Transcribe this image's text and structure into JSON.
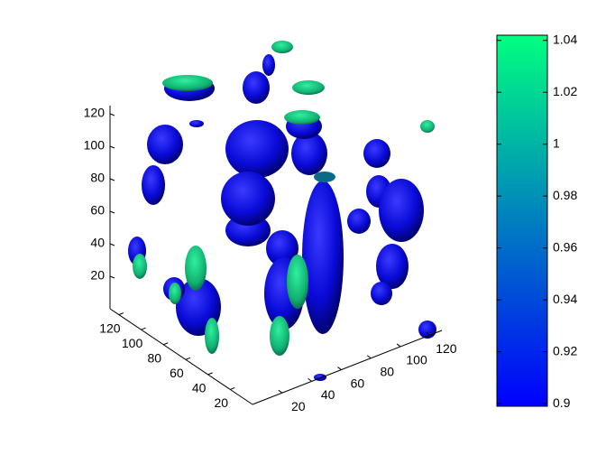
{
  "chart_data": {
    "type": "isosurface3d",
    "xlim": [
      0,
      128
    ],
    "xticks": [
      20,
      40,
      60,
      80,
      100,
      120
    ],
    "ylim": [
      0,
      128
    ],
    "yticks": [
      20,
      40,
      60,
      80,
      100,
      120
    ],
    "zlim": [
      0,
      125
    ],
    "zticks": [
      20,
      40,
      60,
      80,
      100,
      120
    ],
    "colorbar": {
      "clim": [
        0.899,
        1.042
      ],
      "ticks": [
        0.9,
        0.92,
        0.94,
        0.96,
        0.98,
        1,
        1.02,
        1.04
      ],
      "colormap": [
        "#0000ff",
        "#00ff80"
      ]
    }
  }
}
